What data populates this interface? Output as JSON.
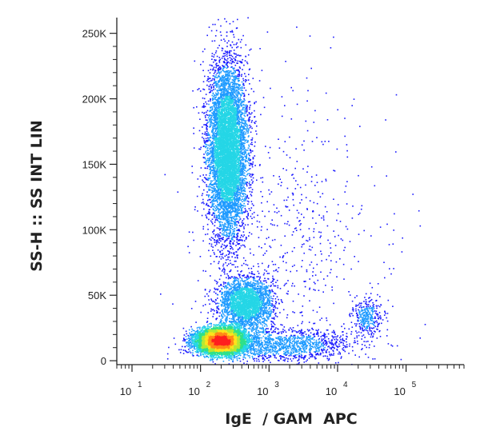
{
  "chart_data": {
    "type": "scatter",
    "style": "density-dot-plot",
    "title": "",
    "xlabel": "IgE  / GAM  APC",
    "ylabel": "SS-H :: SS INT LIN",
    "x_scale": "log",
    "xlim": [
      6,
      700000
    ],
    "ylim": [
      -3000,
      262000
    ],
    "grid": false,
    "x_ticks": [
      {
        "value": 10,
        "base": "10",
        "exp": "1"
      },
      {
        "value": 100,
        "base": "10",
        "exp": "2"
      },
      {
        "value": 1000,
        "base": "10",
        "exp": "3"
      },
      {
        "value": 10000,
        "base": "10",
        "exp": "4"
      },
      {
        "value": 100000,
        "base": "10",
        "exp": "5"
      }
    ],
    "y_ticks": [
      {
        "value": 0,
        "label": "0"
      },
      {
        "value": 50000,
        "label": "50K"
      },
      {
        "value": 100000,
        "label": "100K"
      },
      {
        "value": 150000,
        "label": "150K"
      },
      {
        "value": 200000,
        "label": "200K"
      },
      {
        "value": 250000,
        "label": "250K"
      }
    ],
    "density_colors": [
      "#1a1aff",
      "#1f9bff",
      "#25d6e6",
      "#2fe08a",
      "#b6e832",
      "#ffe31c",
      "#ff8a16",
      "#ff1f1f"
    ],
    "populations": [
      {
        "center_x": 200,
        "center_y": 15000,
        "spread_logx": 0.17,
        "spread_y": 4500,
        "count": 9000
      },
      {
        "center_x": 250,
        "center_y": 160000,
        "spread_logx": 0.14,
        "spread_y": 33000,
        "count": 7200
      },
      {
        "center_x": 450,
        "center_y": 43000,
        "spread_logx": 0.19,
        "spread_y": 10000,
        "count": 2600
      },
      {
        "center_x": 28000,
        "center_y": 33000,
        "spread_logx": 0.11,
        "spread_y": 7000,
        "count": 330
      },
      {
        "center_x": 1500,
        "center_y": 12000,
        "spread_logx": 0.55,
        "spread_y": 6000,
        "count": 1300
      },
      {
        "center_x": 2000,
        "center_y": 90000,
        "spread_logx": 0.7,
        "spread_y": 60000,
        "count": 650
      }
    ]
  }
}
